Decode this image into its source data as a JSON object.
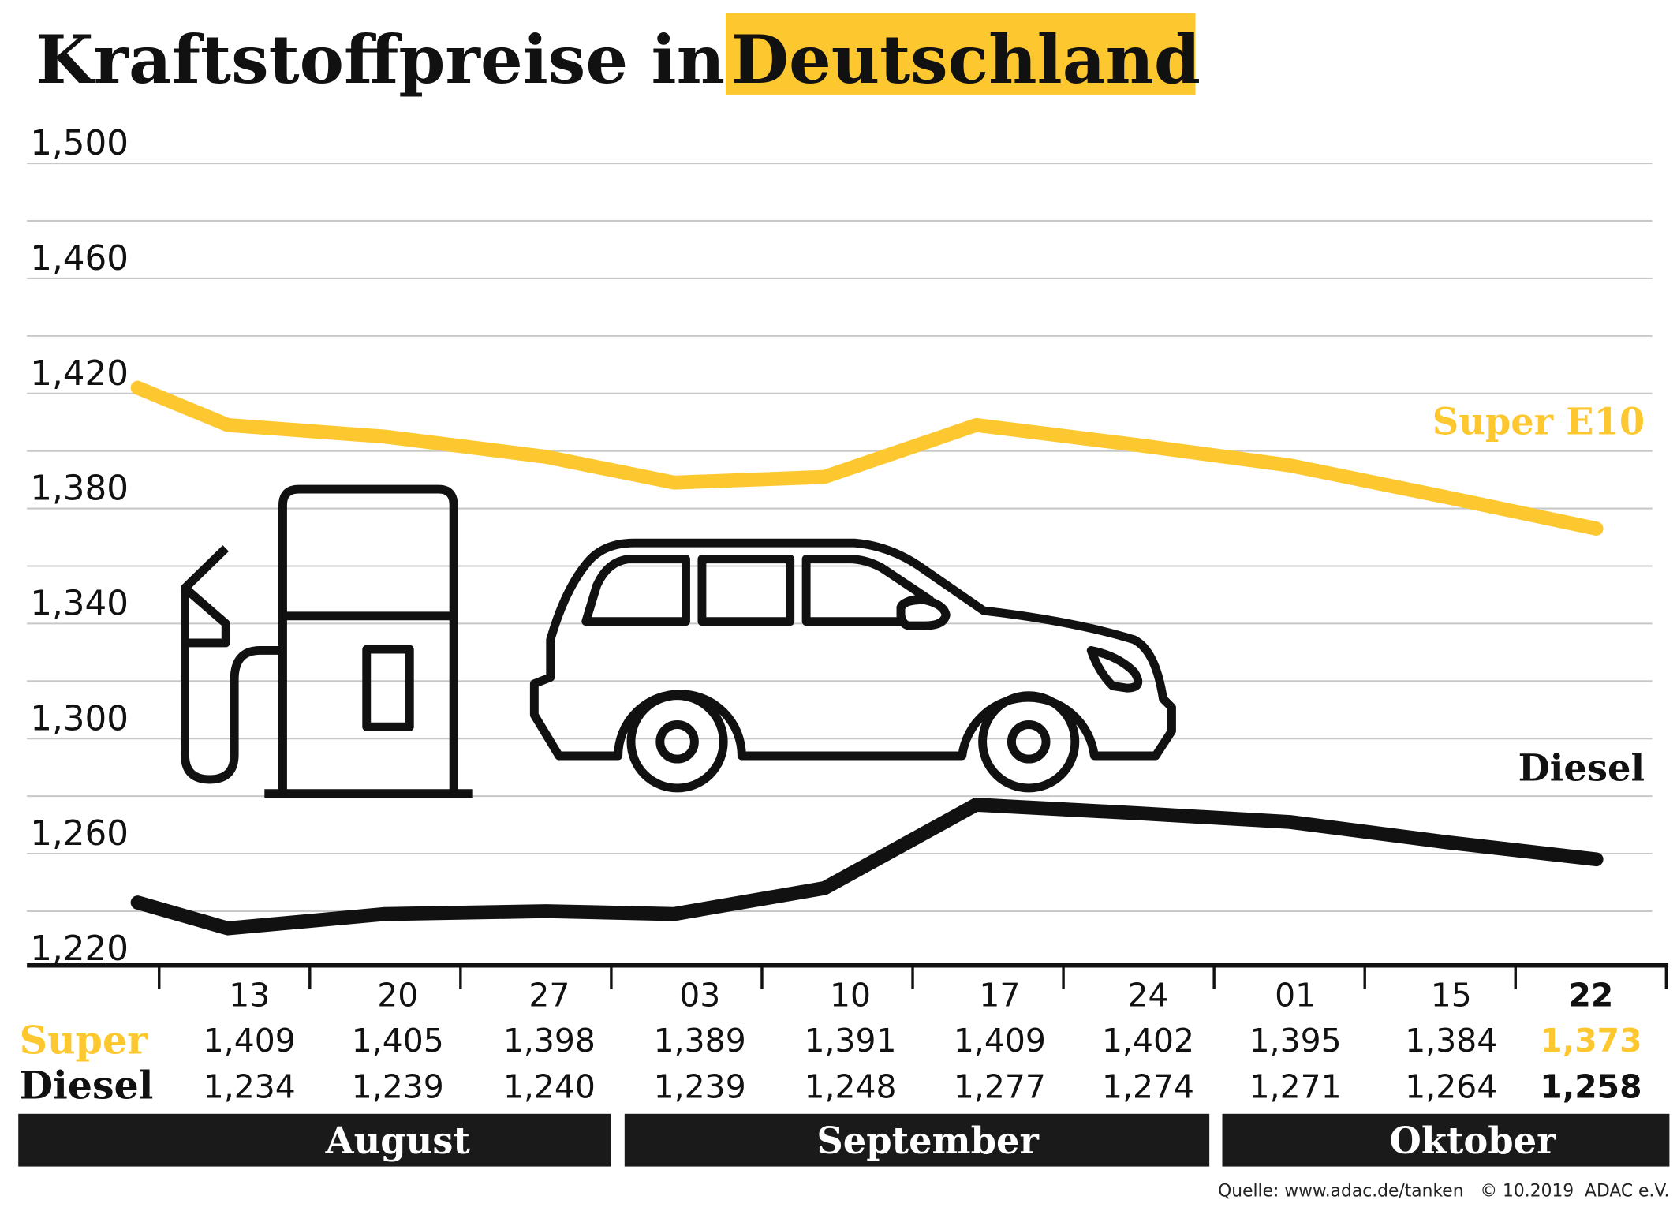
{
  "title": {
    "part1": "Kraftstoffpreise in",
    "part2": "Deutschland"
  },
  "colors": {
    "super": "#FDC82F",
    "diesel": "#111111",
    "highlight": "#FDC82F",
    "grid": "#c8c8c8",
    "month_bar": "#1a1a1a"
  },
  "icons": [
    "fuel-pump-icon",
    "car-icon"
  ],
  "labels": {
    "super_series": "Super E10",
    "diesel_series": "Diesel",
    "super_row": "Super",
    "diesel_row": "Diesel"
  },
  "months": [
    "August",
    "September",
    "Oktober"
  ],
  "source": "Quelle: www.adac.de/tanken   © 10.2019  ADAC e.V.",
  "chart_data": {
    "type": "line",
    "title": "Kraftstoffpreise in Deutschland",
    "yticks": [
      "1,500",
      "1,460",
      "1,420",
      "1,380",
      "1,340",
      "1,300",
      "1,260",
      "1,220"
    ],
    "ylim": [
      1.22,
      1.5
    ],
    "grid": true,
    "categories": [
      "",
      "13",
      "20",
      "27",
      "03",
      "10",
      "17",
      "24",
      "01",
      "15",
      "22"
    ],
    "series": [
      {
        "name": "Super E10",
        "values": [
          1.422,
          1.409,
          1.405,
          1.398,
          1.389,
          1.391,
          1.409,
          1.402,
          1.395,
          1.384,
          1.373
        ]
      },
      {
        "name": "Diesel",
        "values": [
          1.243,
          1.234,
          1.239,
          1.24,
          1.239,
          1.248,
          1.277,
          1.274,
          1.271,
          1.264,
          1.258
        ]
      }
    ],
    "table": {
      "super": [
        "1,409",
        "1,405",
        "1,398",
        "1,389",
        "1,391",
        "1,409",
        "1,402",
        "1,395",
        "1,384",
        "1,373"
      ],
      "diesel": [
        "1,234",
        "1,239",
        "1,240",
        "1,239",
        "1,248",
        "1,277",
        "1,274",
        "1,271",
        "1,264",
        "1,258"
      ]
    }
  }
}
